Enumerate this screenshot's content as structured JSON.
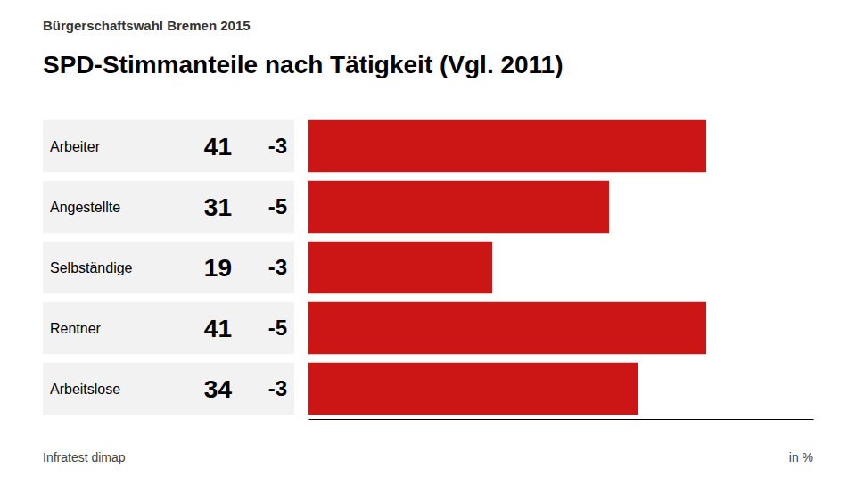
{
  "chart_data": {
    "type": "bar",
    "orientation": "horizontal",
    "title": "SPD-Stimmanteile nach Tätigkeit (Vgl. 2011)",
    "subtitle": "Bürgerschaftswahl Bremen 2015",
    "source": "Infratest dimap",
    "unit": "in %",
    "categories": [
      "Arbeiter",
      "Angestellte",
      "Selbständige",
      "Rentner",
      "Arbeitslose"
    ],
    "values": [
      41,
      31,
      19,
      41,
      34
    ],
    "changes": [
      -3,
      -5,
      -3,
      -5,
      -3
    ],
    "color": "#cc1515",
    "xlim": [
      0,
      52
    ],
    "data_labels": true,
    "tick_labels": false,
    "grid": false
  }
}
